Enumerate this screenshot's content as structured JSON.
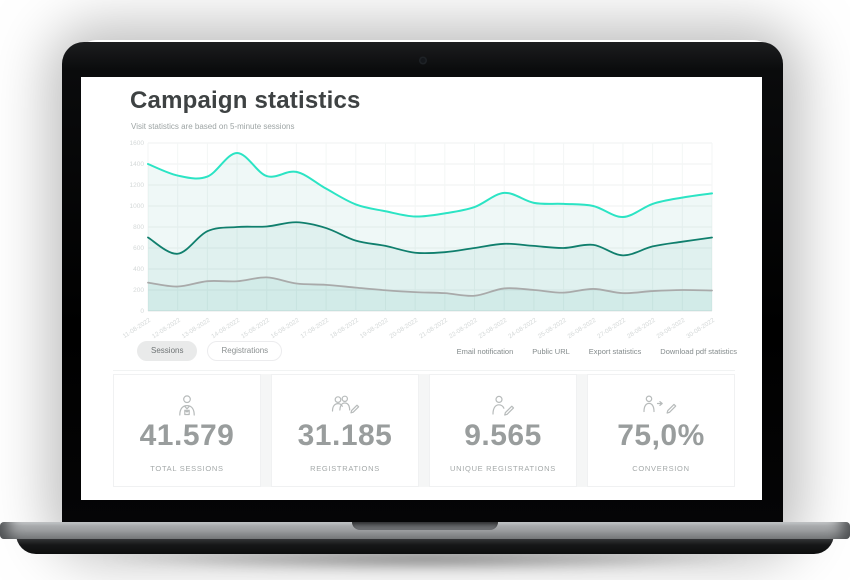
{
  "header": {
    "title": "Campaign statistics",
    "subtitle": "Visit statistics are based on 5-minute sessions"
  },
  "tabs": [
    {
      "label": "Sessions",
      "active": true
    },
    {
      "label": "Registrations",
      "active": false
    }
  ],
  "actions": [
    "Email notification",
    "Public URL",
    "Export statistics",
    "Download pdf statistics"
  ],
  "stats": [
    {
      "icon": "user-icon",
      "value": "41.579",
      "label": "TOTAL SESSIONS"
    },
    {
      "icon": "users-pencil-icon",
      "value": "31.185",
      "label": "REGISTRATIONS"
    },
    {
      "icon": "user-pencil-icon",
      "value": "9.565",
      "label": "UNIQUE REGISTRATIONS"
    },
    {
      "icon": "user-arrow-pencil-icon",
      "value": "75,0%",
      "label": "CONVERSION"
    }
  ],
  "chart_data": {
    "type": "area",
    "title": "",
    "xlabel": "",
    "ylabel": "",
    "ylim": [
      0,
      1600
    ],
    "ytick_step": 200,
    "grid": true,
    "legend": "none",
    "fill_color": "rgba(23,160,138,0.07)",
    "tick_color": "#d4d8d8",
    "grid_color_h": "#eff2f2",
    "grid_color_v": "#f3f6f5",
    "baseline_color": "#e4e7e7",
    "x": [
      "11-08-2022",
      "12-08-2022",
      "13-08-2022",
      "14-08-2022",
      "15-08-2022",
      "16-08-2022",
      "17-08-2022",
      "18-08-2022",
      "19-08-2022",
      "20-08-2022",
      "21-08-2022",
      "22-08-2022",
      "23-08-2022",
      "24-08-2022",
      "25-08-2022",
      "26-08-2022",
      "27-08-2022",
      "28-08-2022",
      "29-08-2022",
      "30-08-2022"
    ],
    "series": [
      {
        "name": "Sessions",
        "color": "#2be4c4",
        "width": 2,
        "values": [
          1400,
          1290,
          1280,
          1505,
          1285,
          1325,
          1165,
          1015,
          950,
          900,
          930,
          990,
          1125,
          1030,
          1020,
          1000,
          895,
          1020,
          1080,
          1120
        ]
      },
      {
        "name": "Registrations",
        "color": "#107f6d",
        "width": 1.8,
        "values": [
          700,
          545,
          760,
          800,
          805,
          845,
          790,
          670,
          620,
          555,
          560,
          600,
          640,
          620,
          600,
          630,
          530,
          615,
          660,
          700
        ]
      },
      {
        "name": "Unique registrations",
        "color": "#a9aaaa",
        "width": 1.8,
        "values": [
          270,
          233,
          284,
          283,
          320,
          262,
          249,
          223,
          198,
          180,
          170,
          145,
          215,
          200,
          175,
          210,
          170,
          190,
          200,
          195
        ]
      }
    ]
  }
}
